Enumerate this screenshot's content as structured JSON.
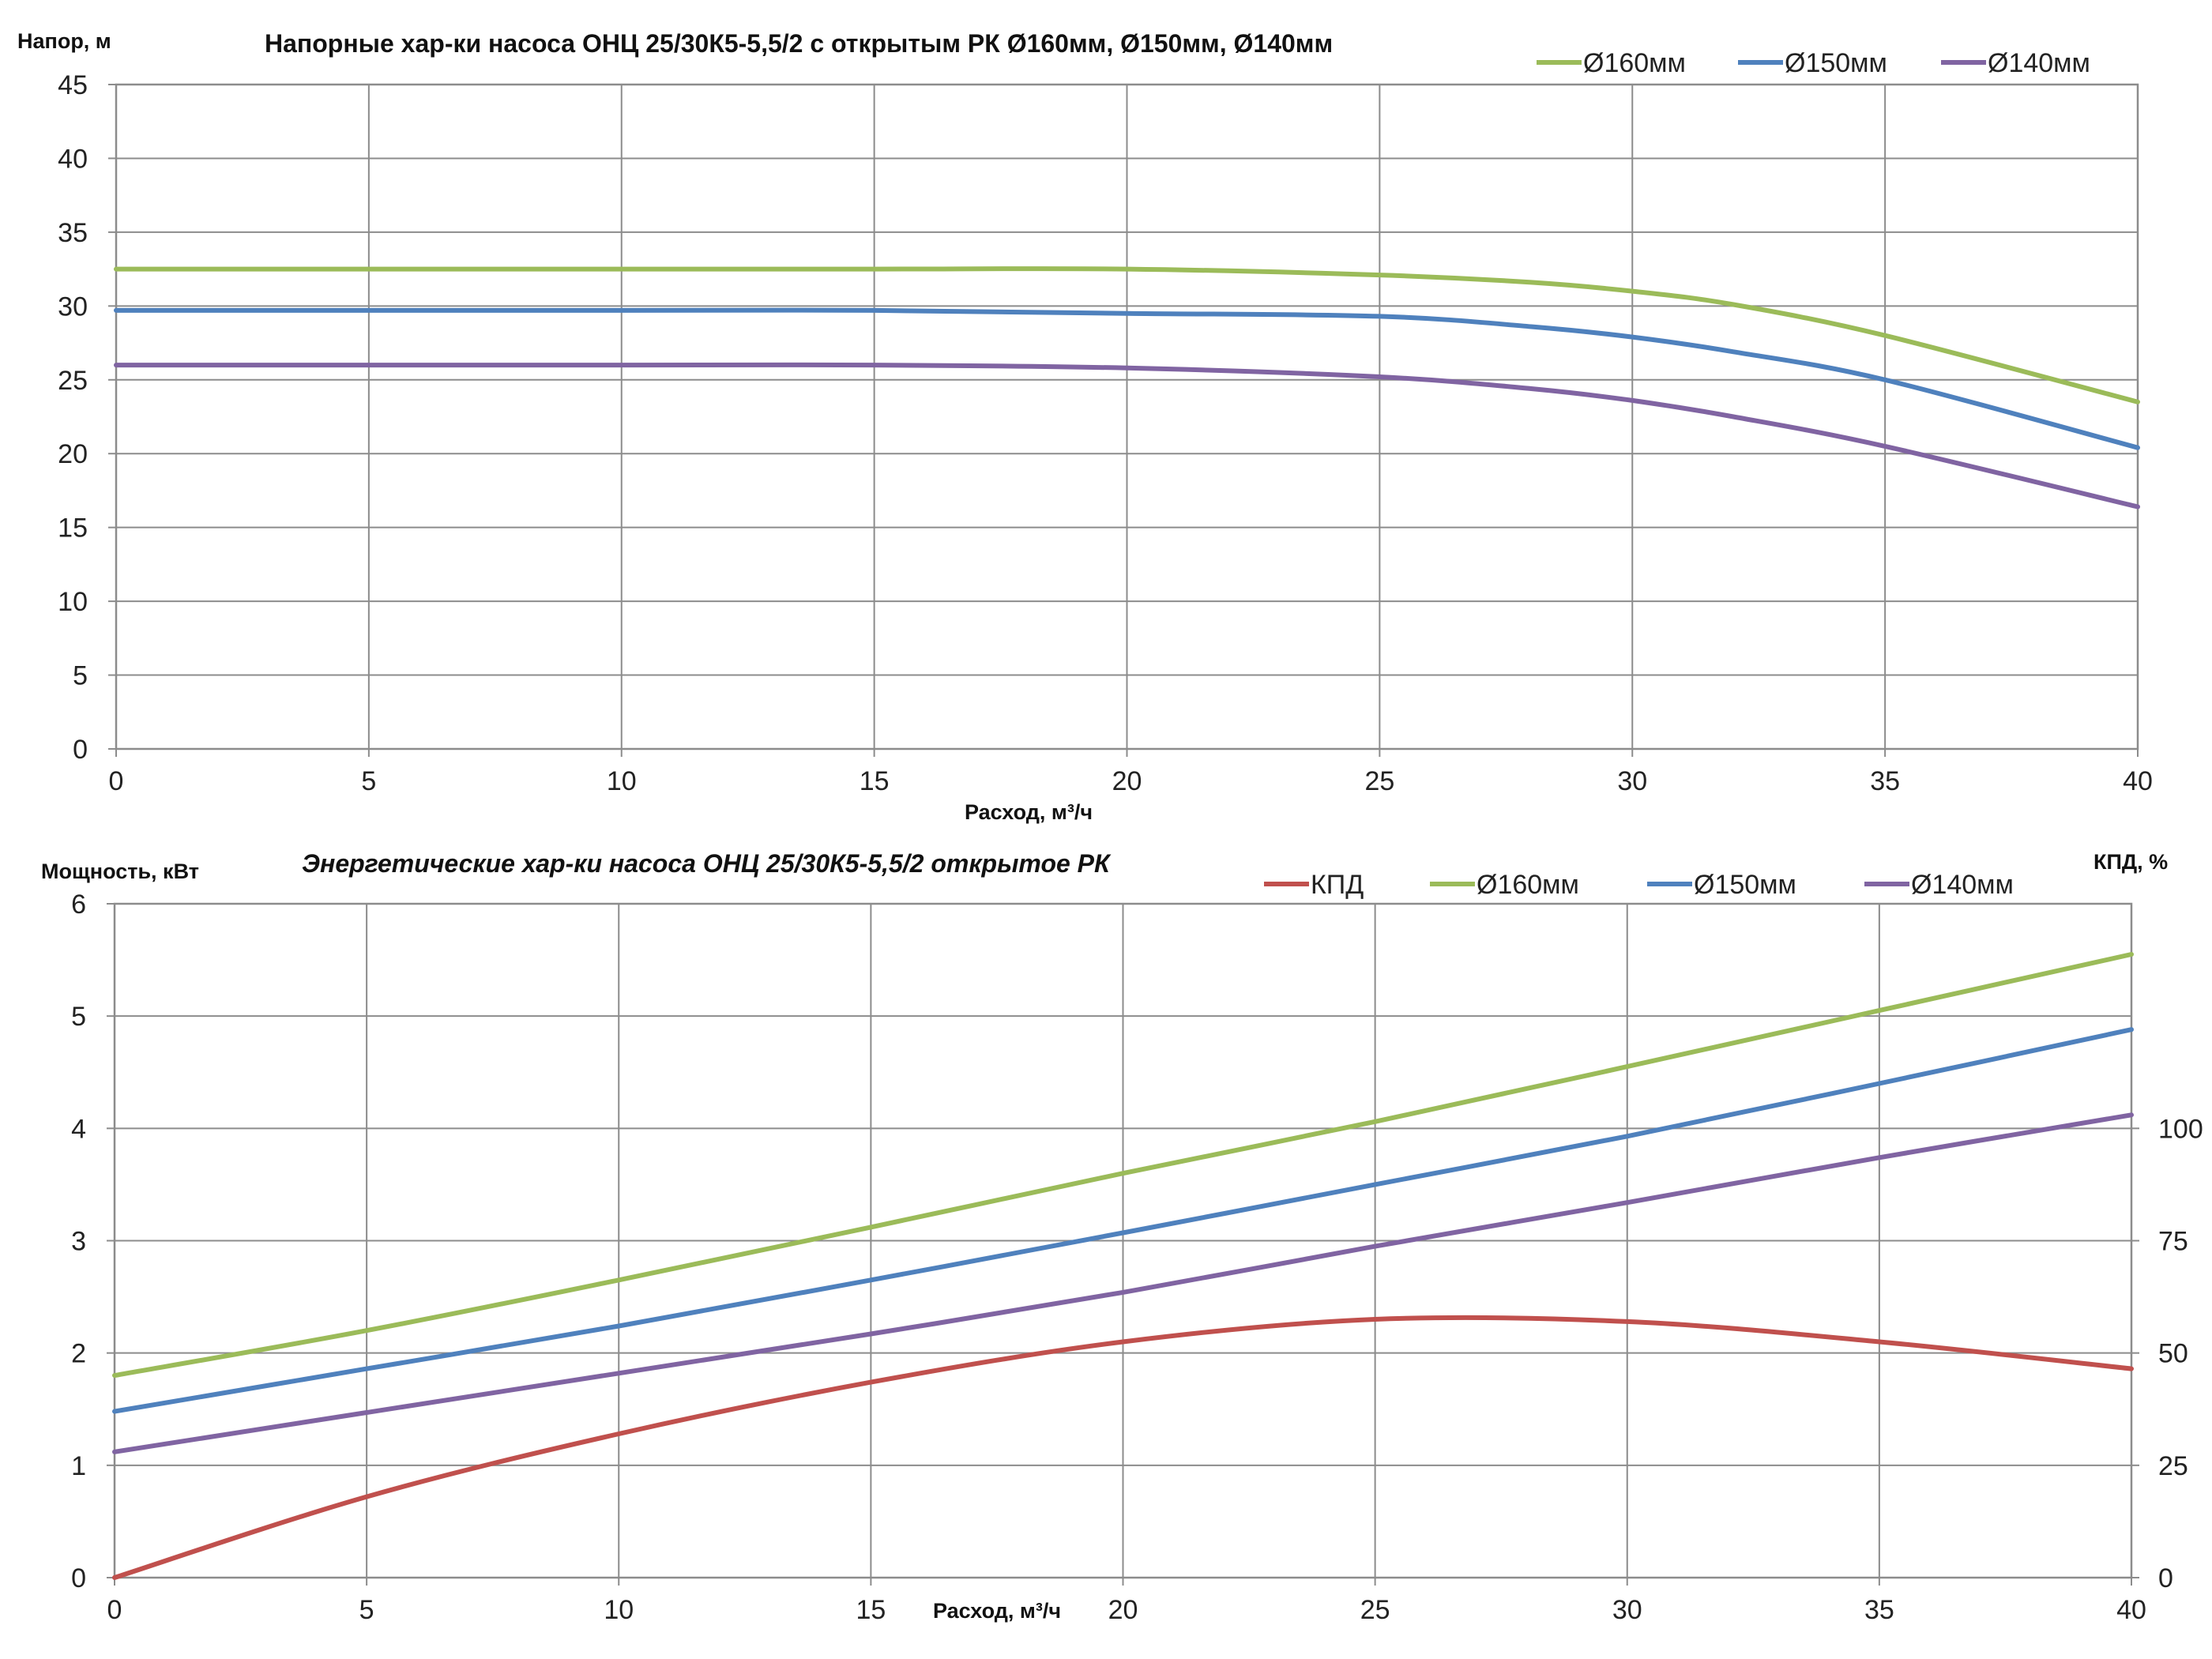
{
  "colors": {
    "d160": "#9bbb59",
    "d150": "#4f81bd",
    "d140": "#8064a2",
    "kpd": "#c0504d",
    "grid": "#8c8c8c"
  },
  "chart_data": [
    {
      "type": "line",
      "title": "Напорные хар-ки насоса ОНЦ 25/30К5-5,5/2  с открытым РК Ø160мм, Ø150мм, Ø140мм",
      "ylabel": "Напор, м",
      "xlabel": "Расход, м³/ч",
      "xlim": [
        0,
        40
      ],
      "ylim": [
        0,
        45
      ],
      "x_ticks": [
        "0",
        "5",
        "10",
        "15",
        "20",
        "25",
        "30",
        "35",
        "40"
      ],
      "y_ticks": [
        "0",
        "5",
        "10",
        "15",
        "20",
        "25",
        "30",
        "35",
        "40",
        "45"
      ],
      "grid": true,
      "legend_position": "top-right",
      "x": [
        0,
        5,
        10,
        15,
        20,
        25,
        28,
        30,
        32,
        35,
        40
      ],
      "series": [
        {
          "name": "Ø160мм",
          "color_key": "d160",
          "values": [
            32.5,
            32.5,
            32.5,
            32.5,
            32.5,
            32.1,
            31.6,
            31.0,
            30.1,
            28.0,
            23.5
          ]
        },
        {
          "name": "Ø150мм",
          "color_key": "d150",
          "values": [
            29.7,
            29.7,
            29.7,
            29.7,
            29.5,
            29.3,
            28.6,
            27.9,
            26.9,
            25.0,
            20.4
          ]
        },
        {
          "name": "Ø140мм",
          "color_key": "d140",
          "values": [
            26.0,
            26.0,
            26.0,
            26.0,
            25.8,
            25.2,
            24.4,
            23.6,
            22.5,
            20.5,
            16.4
          ]
        }
      ]
    },
    {
      "type": "line",
      "title": "Энергетические хар-ки насоса ОНЦ 25/30К5-5,5/2 открытое РК",
      "ylabel": "Мощность, кВт",
      "y2label": "КПД, %",
      "xlabel": "Расход, м³/ч",
      "xlim": [
        0,
        40
      ],
      "ylim": [
        0,
        6
      ],
      "y2lim": [
        0,
        150
      ],
      "x_ticks": [
        "0",
        "5",
        "10",
        "15",
        "20",
        "25",
        "30",
        "35",
        "40"
      ],
      "y_ticks": [
        "0",
        "1",
        "2",
        "3",
        "4",
        "5",
        "6"
      ],
      "y2_ticks": [
        "0",
        "25",
        "50",
        "75",
        "100"
      ],
      "grid": true,
      "legend_position": "top-right",
      "x": [
        0,
        5,
        10,
        15,
        20,
        25,
        30,
        35,
        40
      ],
      "series": [
        {
          "name": "КПД",
          "axis": "right",
          "color_key": "kpd",
          "values": [
            0,
            18,
            32,
            43.5,
            52.5,
            57.5,
            57,
            52.5,
            46.5
          ]
        },
        {
          "name": "Ø160мм",
          "color_key": "d160",
          "values": [
            1.8,
            2.2,
            2.65,
            3.12,
            3.6,
            4.06,
            4.55,
            5.05,
            5.55
          ]
        },
        {
          "name": "Ø150мм",
          "color_key": "d150",
          "values": [
            1.48,
            1.86,
            2.24,
            2.65,
            3.07,
            3.5,
            3.93,
            4.4,
            4.88
          ]
        },
        {
          "name": "Ø140мм",
          "color_key": "d140",
          "values": [
            1.12,
            1.47,
            1.82,
            2.17,
            2.54,
            2.95,
            3.34,
            3.74,
            4.12
          ]
        }
      ]
    }
  ]
}
